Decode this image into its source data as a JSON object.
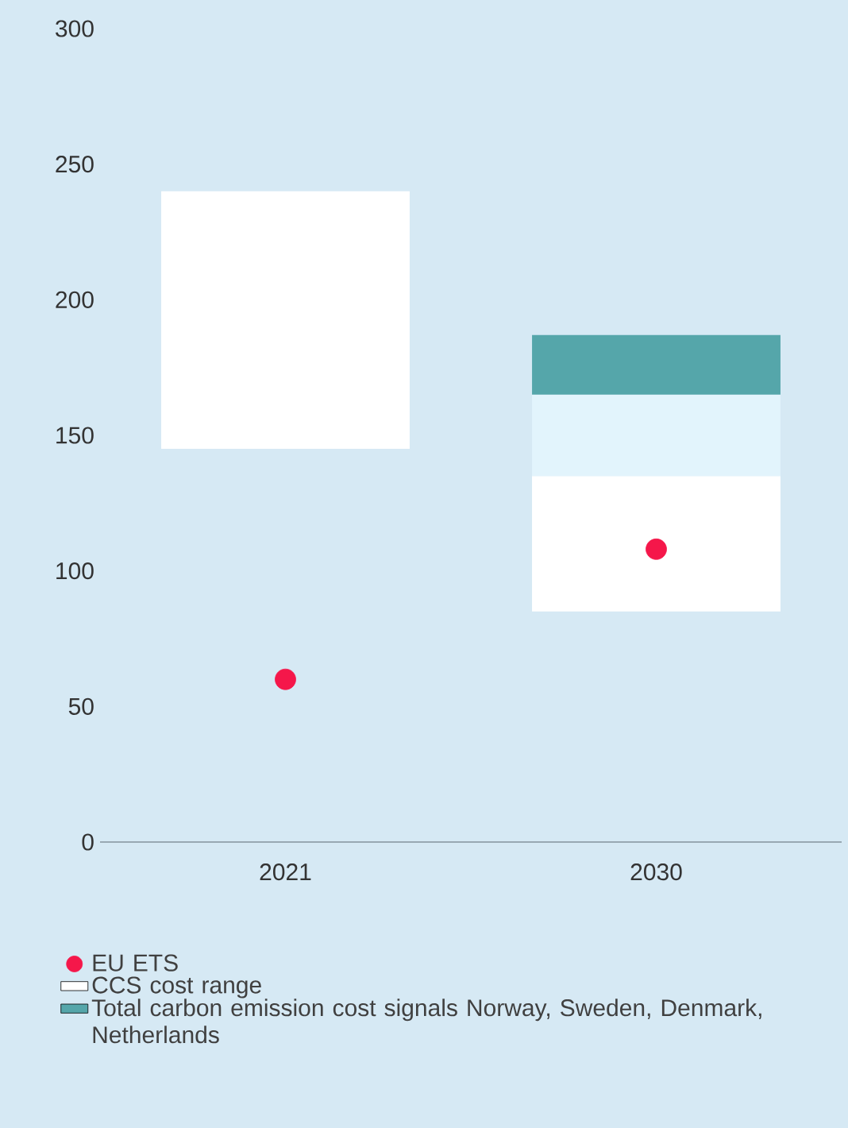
{
  "chart_data": {
    "type": "bar",
    "categories": [
      "2021",
      "2030"
    ],
    "series": [
      {
        "name": "EU ETS",
        "type": "scatter",
        "marker": "circle",
        "color": "#f5174a",
        "values": [
          60,
          108
        ]
      },
      {
        "name": "CCS cost range",
        "color": "#ffffff",
        "base": [
          145,
          85
        ],
        "values": [
          95,
          50
        ]
      },
      {
        "color": "#e2f4fc",
        "base": [
          null,
          135
        ],
        "values": [
          null,
          30
        ]
      },
      {
        "name": "Total carbon emission cost signals Norway, Sweden, Denmark, Netherlands",
        "color": "#55a6aa",
        "base": [
          null,
          165
        ],
        "values": [
          null,
          22
        ]
      }
    ],
    "ylim": [
      0,
      300
    ],
    "yticks": [
      0,
      50,
      100,
      150,
      200,
      250,
      300
    ],
    "legend": "bottom"
  }
}
